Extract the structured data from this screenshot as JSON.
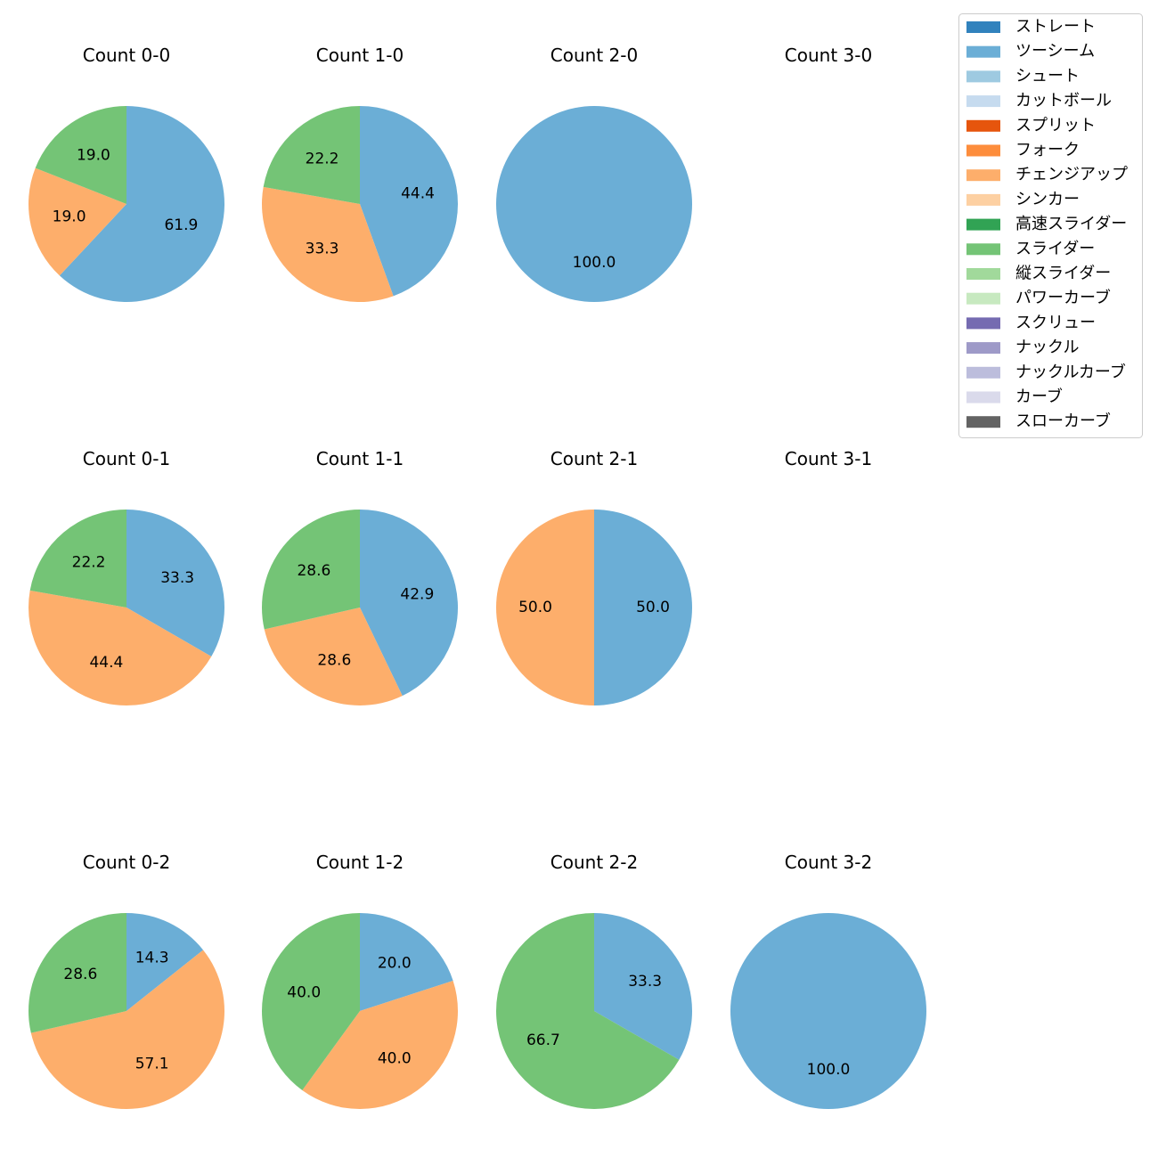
{
  "legend": {
    "items": [
      {
        "label": "ストレート",
        "color": "#3182bd"
      },
      {
        "label": "ツーシーム",
        "color": "#6baed6"
      },
      {
        "label": "シュート",
        "color": "#9ecae1"
      },
      {
        "label": "カットボール",
        "color": "#c6dbef"
      },
      {
        "label": "スプリット",
        "color": "#e6550d"
      },
      {
        "label": "フォーク",
        "color": "#fd8d3c"
      },
      {
        "label": "チェンジアップ",
        "color": "#fdae6b"
      },
      {
        "label": "シンカー",
        "color": "#fdd0a2"
      },
      {
        "label": "高速スライダー",
        "color": "#31a354"
      },
      {
        "label": "スライダー",
        "color": "#74c476"
      },
      {
        "label": "縦スライダー",
        "color": "#a1d99b"
      },
      {
        "label": "パワーカーブ",
        "color": "#c7e9c0"
      },
      {
        "label": "スクリュー",
        "color": "#756bb1"
      },
      {
        "label": "ナックル",
        "color": "#9e9ac8"
      },
      {
        "label": "ナックルカーブ",
        "color": "#bcbddc"
      },
      {
        "label": "カーブ",
        "color": "#dadaeb"
      },
      {
        "label": "スローカーブ",
        "color": "#636363"
      }
    ]
  },
  "chart_data": [
    {
      "type": "pie",
      "title": "Count 0-0",
      "slices": [
        {
          "pitch": "ツーシーム",
          "value": 61.9,
          "label": "61.9"
        },
        {
          "pitch": "チェンジアップ",
          "value": 19.0,
          "label": "19.0"
        },
        {
          "pitch": "スライダー",
          "value": 19.0,
          "label": "19.0"
        }
      ]
    },
    {
      "type": "pie",
      "title": "Count 1-0",
      "slices": [
        {
          "pitch": "ツーシーム",
          "value": 44.4,
          "label": "44.4"
        },
        {
          "pitch": "チェンジアップ",
          "value": 33.3,
          "label": "33.3"
        },
        {
          "pitch": "スライダー",
          "value": 22.2,
          "label": "22.2"
        }
      ]
    },
    {
      "type": "pie",
      "title": "Count 2-0",
      "slices": [
        {
          "pitch": "ツーシーム",
          "value": 100.0,
          "label": "100.0"
        }
      ]
    },
    {
      "type": "pie",
      "title": "Count 3-0",
      "slices": []
    },
    {
      "type": "pie",
      "title": "Count 0-1",
      "slices": [
        {
          "pitch": "ツーシーム",
          "value": 33.3,
          "label": "33.3"
        },
        {
          "pitch": "チェンジアップ",
          "value": 44.4,
          "label": "44.4"
        },
        {
          "pitch": "スライダー",
          "value": 22.2,
          "label": "22.2"
        }
      ]
    },
    {
      "type": "pie",
      "title": "Count 1-1",
      "slices": [
        {
          "pitch": "ツーシーム",
          "value": 42.9,
          "label": "42.9"
        },
        {
          "pitch": "チェンジアップ",
          "value": 28.6,
          "label": "28.6"
        },
        {
          "pitch": "スライダー",
          "value": 28.6,
          "label": "28.6"
        }
      ]
    },
    {
      "type": "pie",
      "title": "Count 2-1",
      "slices": [
        {
          "pitch": "ツーシーム",
          "value": 50.0,
          "label": "50.0"
        },
        {
          "pitch": "チェンジアップ",
          "value": 50.0,
          "label": "50.0"
        }
      ]
    },
    {
      "type": "pie",
      "title": "Count 3-1",
      "slices": []
    },
    {
      "type": "pie",
      "title": "Count 0-2",
      "slices": [
        {
          "pitch": "ツーシーム",
          "value": 14.3,
          "label": "14.3"
        },
        {
          "pitch": "チェンジアップ",
          "value": 57.1,
          "label": "57.1"
        },
        {
          "pitch": "スライダー",
          "value": 28.6,
          "label": "28.6"
        }
      ]
    },
    {
      "type": "pie",
      "title": "Count 1-2",
      "slices": [
        {
          "pitch": "ツーシーム",
          "value": 20.0,
          "label": "20.0"
        },
        {
          "pitch": "チェンジアップ",
          "value": 40.0,
          "label": "40.0"
        },
        {
          "pitch": "スライダー",
          "value": 40.0,
          "label": "40.0"
        }
      ]
    },
    {
      "type": "pie",
      "title": "Count 2-2",
      "slices": [
        {
          "pitch": "ツーシーム",
          "value": 33.3,
          "label": "33.3"
        },
        {
          "pitch": "スライダー",
          "value": 66.7,
          "label": "66.7"
        }
      ]
    },
    {
      "type": "pie",
      "title": "Count 3-2",
      "slices": [
        {
          "pitch": "ツーシーム",
          "value": 100.0,
          "label": "100.0"
        }
      ]
    }
  ]
}
